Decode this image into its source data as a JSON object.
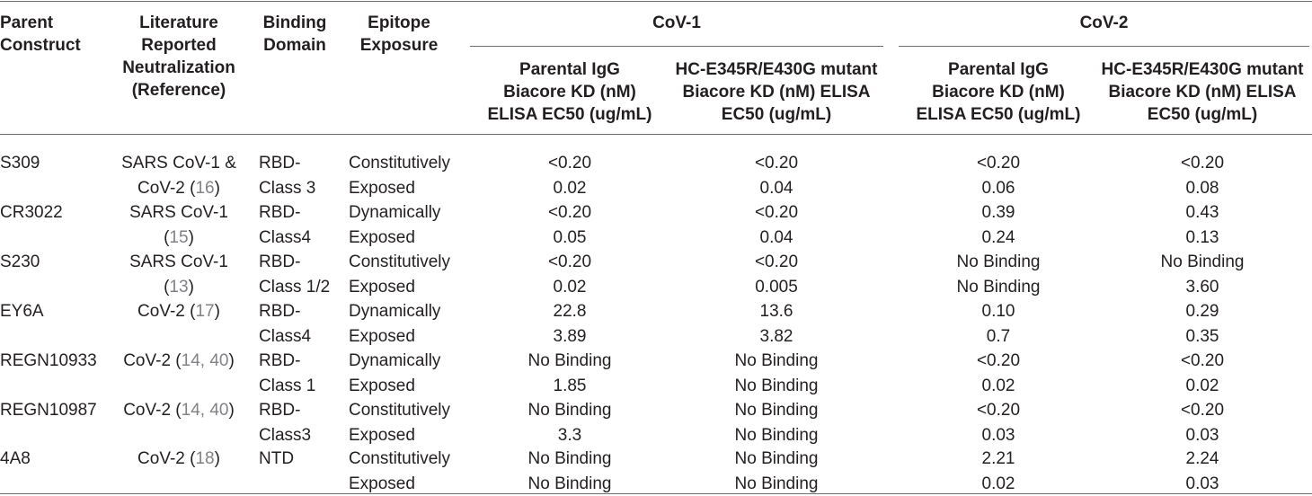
{
  "header": {
    "parent_construct": [
      "Parent",
      "Construct"
    ],
    "literature": [
      "Literature",
      "Reported",
      "Neutralization",
      "(Reference)"
    ],
    "binding_domain": [
      "Binding",
      "Domain"
    ],
    "epitope_exposure": [
      "Epitope",
      "Exposure"
    ],
    "group_cov1": "CoV-1",
    "group_cov2": "CoV-2",
    "cov1_parental": [
      "Parental IgG",
      "Biacore KD (nM)",
      "ELISA EC50 (ug/mL)"
    ],
    "cov1_mutant": [
      "HC-E345R/E430G mutant",
      "Biacore KD (nM) ELISA",
      "EC50 (ug/mL)"
    ],
    "cov2_parental": [
      "Parental IgG",
      "Biacore KD (nM)",
      "ELISA EC50 (ug/mL)"
    ],
    "cov2_mutant": [
      "HC-E345R/E430G mutant",
      "Biacore KD (nM) ELISA",
      "EC50 (ug/mL)"
    ]
  },
  "rows": [
    {
      "construct": "S309",
      "lit": {
        "l1": "SARS CoV-1 &",
        "l2a": "CoV-2 (",
        "l2ref": "16",
        "l2b": ")"
      },
      "domain": [
        "RBD-",
        "Class 3"
      ],
      "exposure": [
        "Constitutively",
        "Exposed"
      ],
      "cov1_parental": [
        "<0.20",
        "0.02"
      ],
      "cov1_mutant": [
        "<0.20",
        "0.04"
      ],
      "cov2_parental": [
        "<0.20",
        "0.06"
      ],
      "cov2_mutant": [
        "<0.20",
        "0.08"
      ]
    },
    {
      "construct": "CR3022",
      "lit": {
        "l1": "SARS CoV-1",
        "l2a": "(",
        "l2ref": "15",
        "l2b": ")"
      },
      "domain": [
        "RBD-",
        "Class4"
      ],
      "exposure": [
        "Dynamically",
        "Exposed"
      ],
      "cov1_parental": [
        "<0.20",
        "0.05"
      ],
      "cov1_mutant": [
        "<0.20",
        "0.04"
      ],
      "cov2_parental": [
        "0.39",
        "0.24"
      ],
      "cov2_mutant": [
        "0.43",
        "0.13"
      ]
    },
    {
      "construct": "S230",
      "lit": {
        "l1": "SARS CoV-1",
        "l2a": "(",
        "l2ref": "13",
        "l2b": ")"
      },
      "domain": [
        "RBD-",
        "Class 1/2"
      ],
      "exposure": [
        "Constitutively",
        "Exposed"
      ],
      "cov1_parental": [
        "<0.20",
        "0.02"
      ],
      "cov1_mutant": [
        "<0.20",
        "0.005"
      ],
      "cov2_parental": [
        "No Binding",
        "No Binding"
      ],
      "cov2_mutant": [
        "No Binding",
        "3.60"
      ]
    },
    {
      "construct": "EY6A",
      "lit": {
        "l1a": "CoV-2 (",
        "l1ref": "17",
        "l1b": ")"
      },
      "domain": [
        "RBD-",
        "Class4"
      ],
      "exposure": [
        "Dynamically",
        "Exposed"
      ],
      "cov1_parental": [
        "22.8",
        "3.89"
      ],
      "cov1_mutant": [
        "13.6",
        "3.82"
      ],
      "cov2_parental": [
        "0.10",
        "0.7"
      ],
      "cov2_mutant": [
        "0.29",
        "0.35"
      ]
    },
    {
      "construct": "REGN10933",
      "lit": {
        "l1a": "CoV-2 (",
        "l1ref": "14, 40",
        "l1b": ")"
      },
      "domain": [
        "RBD-",
        "Class 1"
      ],
      "exposure": [
        "Dynamically",
        "Exposed"
      ],
      "cov1_parental": [
        "No Binding",
        "1.85"
      ],
      "cov1_mutant": [
        "No Binding",
        "No Binding"
      ],
      "cov2_parental": [
        "<0.20",
        "0.02"
      ],
      "cov2_mutant": [
        "<0.20",
        "0.02"
      ]
    },
    {
      "construct": "REGN10987",
      "lit": {
        "l1a": "CoV-2 (",
        "l1ref": "14, 40",
        "l1b": ")"
      },
      "domain": [
        "RBD-",
        "Class3"
      ],
      "exposure": [
        "Constitutively",
        "Exposed"
      ],
      "cov1_parental": [
        "No Binding",
        "3.3"
      ],
      "cov1_mutant": [
        "No Binding",
        "No Binding"
      ],
      "cov2_parental": [
        "<0.20",
        "0.03"
      ],
      "cov2_mutant": [
        "<0.20",
        "0.03"
      ]
    },
    {
      "construct": "4A8",
      "lit": {
        "l1a": "CoV-2 (",
        "l1ref": "18",
        "l1b": ")"
      },
      "domain": [
        "NTD",
        ""
      ],
      "exposure": [
        "Constitutively",
        "Exposed"
      ],
      "cov1_parental": [
        "No Binding",
        "No Binding"
      ],
      "cov1_mutant": [
        "No Binding",
        "No Binding"
      ],
      "cov2_parental": [
        "2.21",
        "0.02"
      ],
      "cov2_mutant": [
        "2.24",
        "0.03"
      ]
    }
  ]
}
